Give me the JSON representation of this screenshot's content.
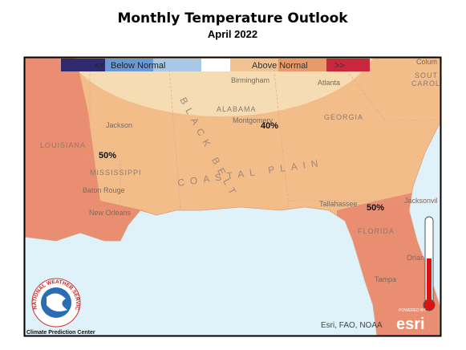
{
  "header": {
    "title": "Monthly Temperature Outlook",
    "subtitle": "April 2022"
  },
  "legend": {
    "left_arrows": "<<",
    "below": "Below Normal",
    "above": "Above Normal",
    "right_arrows": ">>"
  },
  "outlook_labels": [
    "40%",
    "50%",
    "50%"
  ],
  "places": [
    "Birmingham",
    "Atlanta",
    "Jackson",
    "Montgomery",
    "LOUISIANA",
    "MISSISSIPPI",
    "ALABAMA",
    "GEORGIA",
    "Baton Rouge",
    "New Orleans",
    "Tallahassee",
    "Jacksonvil",
    "FLORIDA",
    "Orlando",
    "Tampa",
    "Colum",
    "SOUT",
    "CAROLI"
  ],
  "regions": [
    "BLACK BELT",
    "COASTAL PLAIN"
  ],
  "credits": {
    "sources": "Esri, FAO, NOAA",
    "powered": "POWERED BY",
    "esri": "esri",
    "cpc": "Climate Prediction Center",
    "nws": "NATIONAL WEATHER SERVICE"
  }
}
